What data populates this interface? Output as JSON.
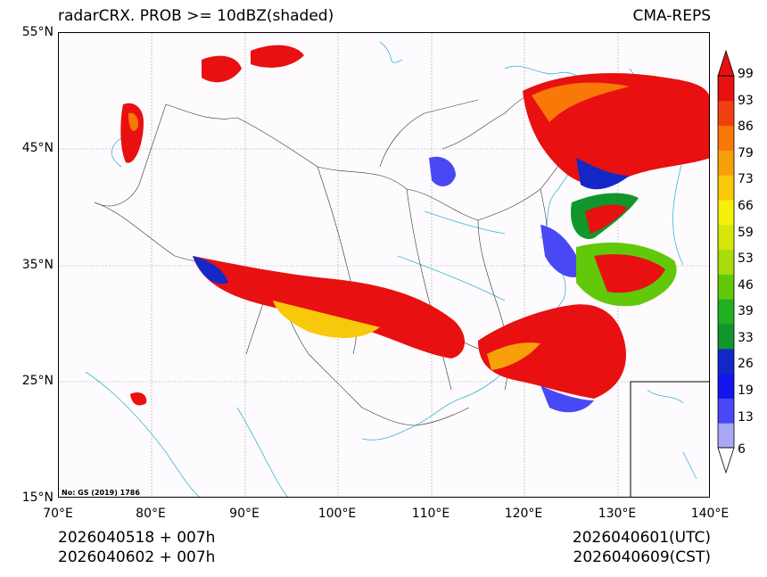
{
  "title_left": "radarCRX. PROB >= 10dBZ(shaded)",
  "title_right": "CMA-REPS",
  "lat_labels": [
    "55°N",
    "45°N",
    "35°N",
    "25°N",
    "15°N"
  ],
  "lon_labels": [
    "70°E",
    "80°E",
    "90°E",
    "100°E",
    "110°E",
    "120°E",
    "130°E",
    "140°E"
  ],
  "init_line_1": "2026040518  +  007h",
  "init_line_2": "2026040602  +  007h",
  "valid_line_1": "2026040601(UTC)",
  "valid_line_2": "2026040609(CST)",
  "watermark": "No: GS (2019) 1786",
  "colorbar": {
    "levels": [
      "99",
      "93",
      "86",
      "79",
      "73",
      "66",
      "59",
      "53",
      "46",
      "39",
      "33",
      "26",
      "19",
      "13",
      "6"
    ],
    "colors_bottom_to_top": [
      "#a8a8f5",
      "#4848f5",
      "#1515ee",
      "#1428c8",
      "#10962a",
      "#20b020",
      "#62c80a",
      "#a8dc0a",
      "#d4e60a",
      "#f4f00a",
      "#f8c80a",
      "#f8a00a",
      "#f87808",
      "#f04010",
      "#e81010"
    ]
  },
  "map_extent": {
    "lon_min": 70,
    "lon_max": 140,
    "lat_min": 15,
    "lat_max": 55
  }
}
